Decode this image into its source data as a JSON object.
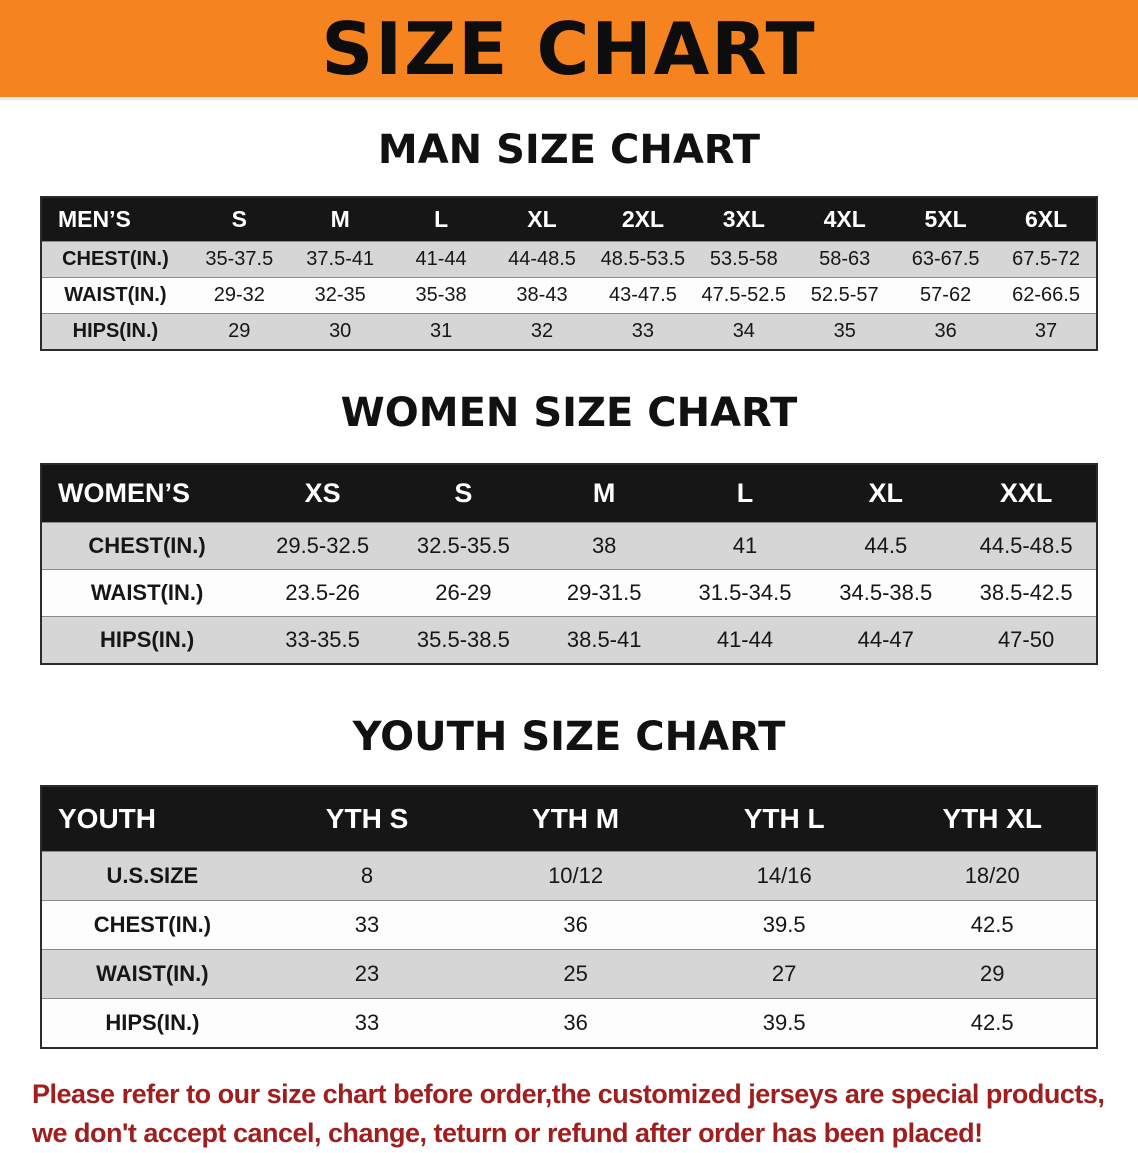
{
  "banner": {
    "title": "SIZE CHART"
  },
  "colors": {
    "banner_bg": "#F5831F",
    "heading_text": "#111111",
    "table_header_bg": "#161616",
    "table_header_text": "#FFFFFF",
    "row_shaded_bg": "#D6D6D6",
    "row_plain_bg": "#FDFDFD",
    "disclaimer_text": "#A01E1E"
  },
  "sections": {
    "men": {
      "heading": "MAN SIZE CHART",
      "table": {
        "header": [
          "MEN’S",
          "S",
          "M",
          "L",
          "XL",
          "2XL",
          "3XL",
          "4XL",
          "5XL",
          "6XL"
        ],
        "rows": [
          [
            "CHEST(IN.)",
            "35-37.5",
            "37.5-41",
            "41-44",
            "44-48.5",
            "48.5-53.5",
            "53.5-58",
            "58-63",
            "63-67.5",
            "67.5-72"
          ],
          [
            "WAIST(IN.)",
            "29-32",
            "32-35",
            "35-38",
            "38-43",
            "43-47.5",
            "47.5-52.5",
            "52.5-57",
            "57-62",
            "62-66.5"
          ],
          [
            "HIPS(IN.)",
            "29",
            "30",
            "31",
            "32",
            "33",
            "34",
            "35",
            "36",
            "37"
          ]
        ]
      }
    },
    "women": {
      "heading": "WOMEN SIZE CHART",
      "table": {
        "header": [
          "WOMEN’S",
          "XS",
          "S",
          "M",
          "L",
          "XL",
          "XXL"
        ],
        "rows": [
          [
            "CHEST(IN.)",
            "29.5-32.5",
            "32.5-35.5",
            "38",
            "41",
            "44.5",
            "44.5-48.5"
          ],
          [
            "WAIST(IN.)",
            "23.5-26",
            "26-29",
            "29-31.5",
            "31.5-34.5",
            "34.5-38.5",
            "38.5-42.5"
          ],
          [
            "HIPS(IN.)",
            "33-35.5",
            "35.5-38.5",
            "38.5-41",
            "41-44",
            "44-47",
            "47-50"
          ]
        ]
      }
    },
    "youth": {
      "heading": "YOUTH SIZE CHART",
      "table": {
        "header": [
          "YOUTH",
          "YTH S",
          "YTH M",
          "YTH L",
          "YTH XL"
        ],
        "rows": [
          [
            "U.S.SIZE",
            "8",
            "10/12",
            "14/16",
            "18/20"
          ],
          [
            "CHEST(IN.)",
            "33",
            "36",
            "39.5",
            "42.5"
          ],
          [
            "WAIST(IN.)",
            "23",
            "25",
            "27",
            "29"
          ],
          [
            "HIPS(IN.)",
            "33",
            "36",
            "39.5",
            "42.5"
          ]
        ]
      }
    }
  },
  "disclaimer": {
    "line1": "Please refer to our size chart before order,the customized jerseys are special products,",
    "line2": "we don't accept cancel, change, teturn or refund after order has been placed!"
  }
}
